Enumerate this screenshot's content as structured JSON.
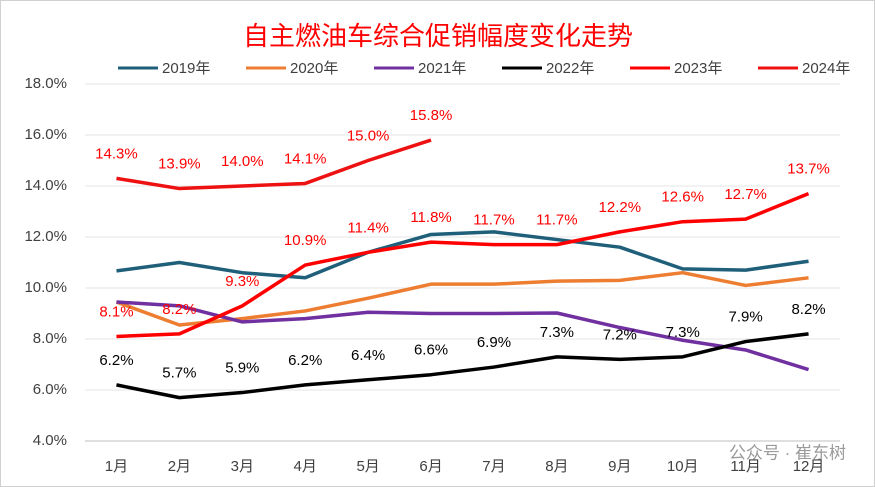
{
  "chart_data": {
    "type": "line",
    "title": "自主燃油车综合促销幅度变化走势",
    "watermark": "公众号 · 崔东树",
    "categories": [
      "1月",
      "2月",
      "3月",
      "4月",
      "5月",
      "6月",
      "7月",
      "8月",
      "9月",
      "10月",
      "11月",
      "12月"
    ],
    "ylim": [
      4,
      18
    ],
    "yticks": [
      {
        "value": 4,
        "label": "4.0%"
      },
      {
        "value": 6,
        "label": "6.0%"
      },
      {
        "value": 8,
        "label": "8.0%"
      },
      {
        "value": 10,
        "label": "10.0%"
      },
      {
        "value": 12,
        "label": "12.0%"
      },
      {
        "value": 14,
        "label": "14.0%"
      },
      {
        "value": 16,
        "label": "16.0%"
      },
      {
        "value": 18,
        "label": "18.0%"
      }
    ],
    "legend": "top",
    "series": [
      {
        "name": "2019年",
        "color": "#1f5f7a",
        "values": [
          10.67,
          11.0,
          10.6,
          10.4,
          11.4,
          12.1,
          12.2,
          11.9,
          11.6,
          10.75,
          10.7,
          11.05
        ]
      },
      {
        "name": "2020年",
        "color": "#ed7d31",
        "values": [
          9.45,
          8.55,
          8.8,
          9.1,
          9.6,
          10.15,
          10.15,
          10.27,
          10.3,
          10.6,
          10.1,
          10.4
        ]
      },
      {
        "name": "2021年",
        "color": "#7030a0",
        "values": [
          9.45,
          9.3,
          8.67,
          8.8,
          9.05,
          9.0,
          9.0,
          9.02,
          8.45,
          7.95,
          7.57,
          6.8
        ]
      },
      {
        "name": "2022年",
        "color": "#000000",
        "values": [
          6.2,
          5.7,
          5.9,
          6.2,
          6.4,
          6.6,
          6.9,
          7.3,
          7.2,
          7.3,
          7.9,
          8.2
        ],
        "value_labels": [
          "6.2%",
          "5.7%",
          "5.9%",
          "6.2%",
          "6.4%",
          "6.6%",
          "6.9%",
          "7.3%",
          "7.2%",
          "7.3%",
          "7.9%",
          "8.2%"
        ]
      },
      {
        "name": "2023年",
        "color": "#ff0000",
        "values": [
          8.1,
          8.2,
          9.3,
          10.9,
          11.4,
          11.8,
          11.7,
          11.7,
          12.2,
          12.6,
          12.7,
          13.7
        ],
        "value_labels": [
          "8.1%",
          "8.2%",
          "9.3%",
          "10.9%",
          "11.4%",
          "11.8%",
          "11.7%",
          "11.7%",
          "12.2%",
          "12.6%",
          "12.7%",
          "13.7%"
        ]
      },
      {
        "name": "2024年",
        "color": "#ee1111",
        "values": [
          14.3,
          13.9,
          14.0,
          14.1,
          15.0,
          15.8,
          null,
          null,
          null,
          null,
          null,
          null
        ],
        "value_labels": [
          "14.3%",
          "13.9%",
          "14.0%",
          "14.1%",
          "15.0%",
          "15.8%",
          null,
          null,
          null,
          null,
          null,
          null
        ]
      }
    ]
  }
}
